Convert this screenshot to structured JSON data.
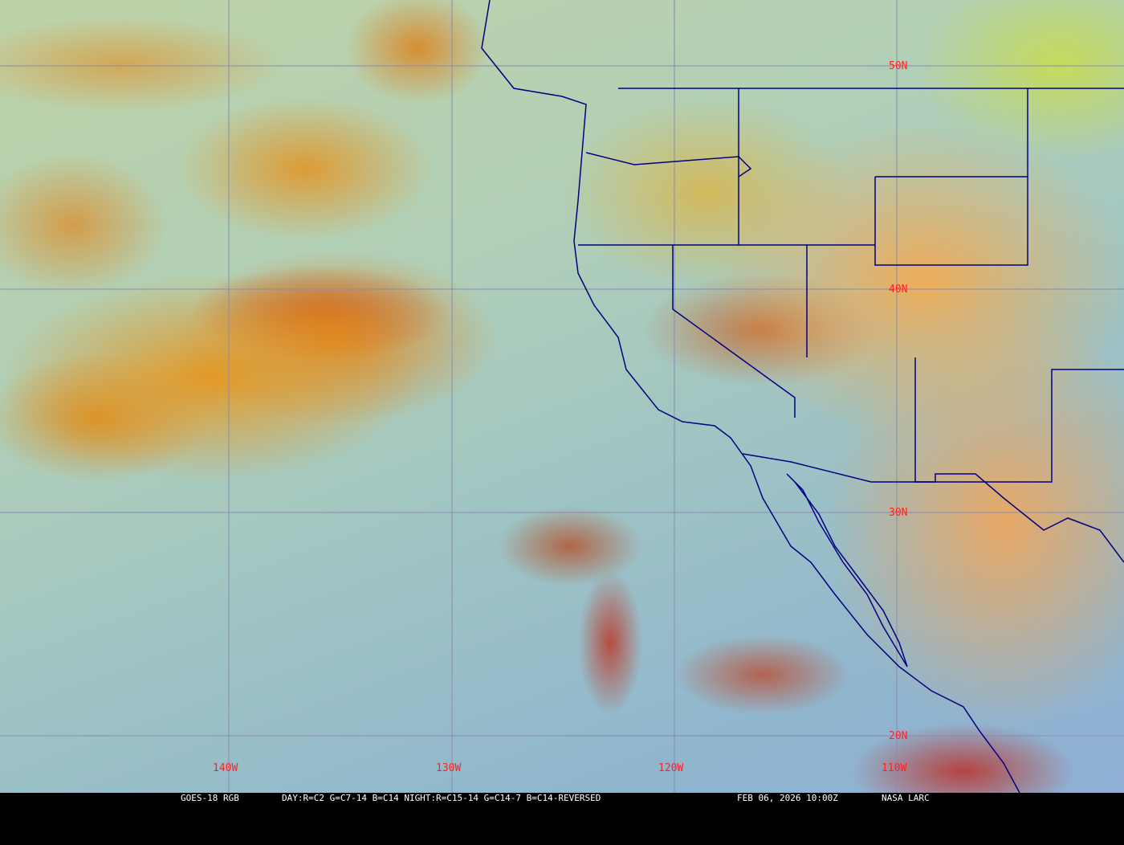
{
  "map": {
    "type": "satellite-rgb-imagery",
    "grid_color": "#8a8ab0",
    "border_color": "#000080",
    "label_color": "#ff2020",
    "latitude_labels": [
      "50N",
      "40N",
      "30N",
      "20N"
    ],
    "longitude_labels": [
      "140W",
      "130W",
      "120W",
      "110W"
    ]
  },
  "caption": {
    "product": "GOES-18 RGB",
    "recipe": "DAY:R=C2 G=C7-14 B=C14 NIGHT:R=C15-14 G=C14-7 B=C14-REVERSED",
    "timestamp": "FEB 06, 2026 10:00Z",
    "credit": "NASA LARC"
  }
}
